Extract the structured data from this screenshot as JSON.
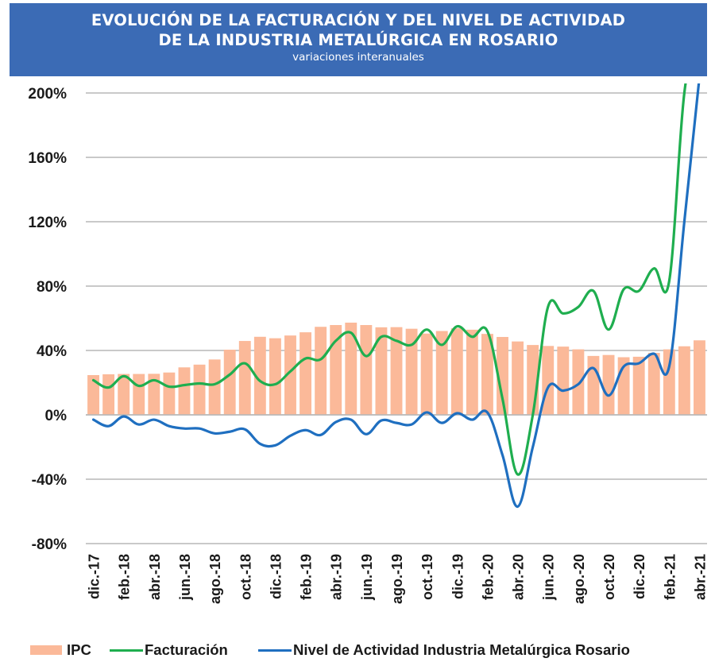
{
  "header": {
    "title_line1": "EVOLUCIÓN DE LA FACTURACIÓN Y DEL NIVEL DE ACTIVIDAD",
    "title_line2": "DE LA INDUSTRIA METALÚRGICA EN ROSARIO",
    "subtitle": "variaciones interanuales",
    "background_color": "#3b6bb5"
  },
  "legend": {
    "items": [
      {
        "label": "IPC",
        "type": "bar",
        "color": "#fbb999"
      },
      {
        "label": "Facturación",
        "type": "line",
        "color": "#1fae4f"
      },
      {
        "label": "Nivel de Actividad Industria Metalúrgica Rosario",
        "type": "line",
        "color": "#1f6fc0"
      }
    ]
  },
  "chart_data": {
    "type": "bar+line",
    "title": "EVOLUCIÓN DE LA FACTURACIÓN Y DEL NIVEL DE ACTIVIDAD DE LA INDUSTRIA METALÚRGICA EN ROSARIO",
    "subtitle": "variaciones interanuales",
    "xlabel": "",
    "ylabel": "",
    "ylim": [
      -80,
      200
    ],
    "yticks": [
      200,
      160,
      120,
      80,
      40,
      0,
      -40,
      -80
    ],
    "ytick_labels": [
      "200%",
      "160%",
      "120%",
      "80%",
      "40%",
      "0%",
      "-40%",
      "-80%"
    ],
    "grid": true,
    "legend_position": "bottom",
    "categories": [
      "dic.-17",
      "ene.-18",
      "feb.-18",
      "mar.-18",
      "abr.-18",
      "may.-18",
      "jun.-18",
      "jul.-18",
      "ago.-18",
      "sep.-18",
      "oct.-18",
      "nov.-18",
      "dic.-18",
      "ene.-19",
      "feb.-19",
      "mar.-19",
      "abr.-19",
      "may.-19",
      "jun.-19",
      "jul.-19",
      "ago.-19",
      "sep.-19",
      "oct.-19",
      "nov.-19",
      "dic.-19",
      "ene.-20",
      "feb.-20",
      "mar.-20",
      "abr.-20",
      "may.-20",
      "jun.-20",
      "jul.-20",
      "ago.-20",
      "sep.-20",
      "oct.-20",
      "nov.-20",
      "dic.-20",
      "ene.-21",
      "feb.-21",
      "mar.-21",
      "abr.-21"
    ],
    "xtick_labels": [
      "dic.-17",
      "feb.-18",
      "abr.-18",
      "jun.-18",
      "ago.-18",
      "oct.-18",
      "dic.-18",
      "feb.-19",
      "abr.-19",
      "jun.-19",
      "ago.-19",
      "oct.-19",
      "dic.-19",
      "feb.-20",
      "abr.-20",
      "jun.-20",
      "ago.-20",
      "oct.-20",
      "dic.-20",
      "feb.-21",
      "abr.-21"
    ],
    "series": [
      {
        "name": "IPC",
        "type": "bar",
        "color": "#fbb999",
        "values": [
          24.7,
          25.2,
          25.4,
          25.4,
          25.5,
          26.3,
          29.5,
          31.2,
          34.4,
          40.5,
          45.9,
          48.5,
          47.6,
          49.3,
          51.3,
          54.7,
          55.8,
          57.3,
          55.8,
          54.4,
          54.5,
          53.5,
          50.5,
          52.1,
          53.8,
          52.9,
          50.3,
          48.4,
          45.6,
          43.4,
          42.8,
          42.4,
          40.7,
          36.6,
          37.2,
          35.8,
          36.1,
          38.5,
          40.7,
          42.6,
          46.3
        ]
      },
      {
        "name": "Facturación",
        "type": "line",
        "color": "#1fae4f",
        "values": [
          21.5,
          17,
          24,
          18,
          21.5,
          17.5,
          18.5,
          19.5,
          19,
          25,
          32,
          21,
          19,
          27,
          35,
          34.5,
          46,
          51,
          36.5,
          48.5,
          46,
          43.5,
          53,
          43.5,
          55,
          48.5,
          52,
          10,
          -37,
          0,
          67,
          63,
          67,
          77,
          53,
          78,
          77,
          91,
          83,
          200,
          240
        ]
      },
      {
        "name": "Nivel de Actividad Industria Metalúrgica Rosario",
        "type": "line",
        "color": "#1f6fc0",
        "values": [
          -3,
          -7,
          -1,
          -6,
          -3,
          -7,
          -8.5,
          -8.5,
          -11.5,
          -10.5,
          -9,
          -18,
          -19,
          -13,
          -9.5,
          -12.5,
          -4.5,
          -3,
          -12,
          -3.5,
          -5,
          -6,
          1.5,
          -5,
          1,
          -3,
          1.5,
          -25,
          -57,
          -20,
          17,
          15,
          19,
          29,
          12,
          30,
          32,
          38,
          30,
          120,
          210
        ]
      }
    ]
  }
}
